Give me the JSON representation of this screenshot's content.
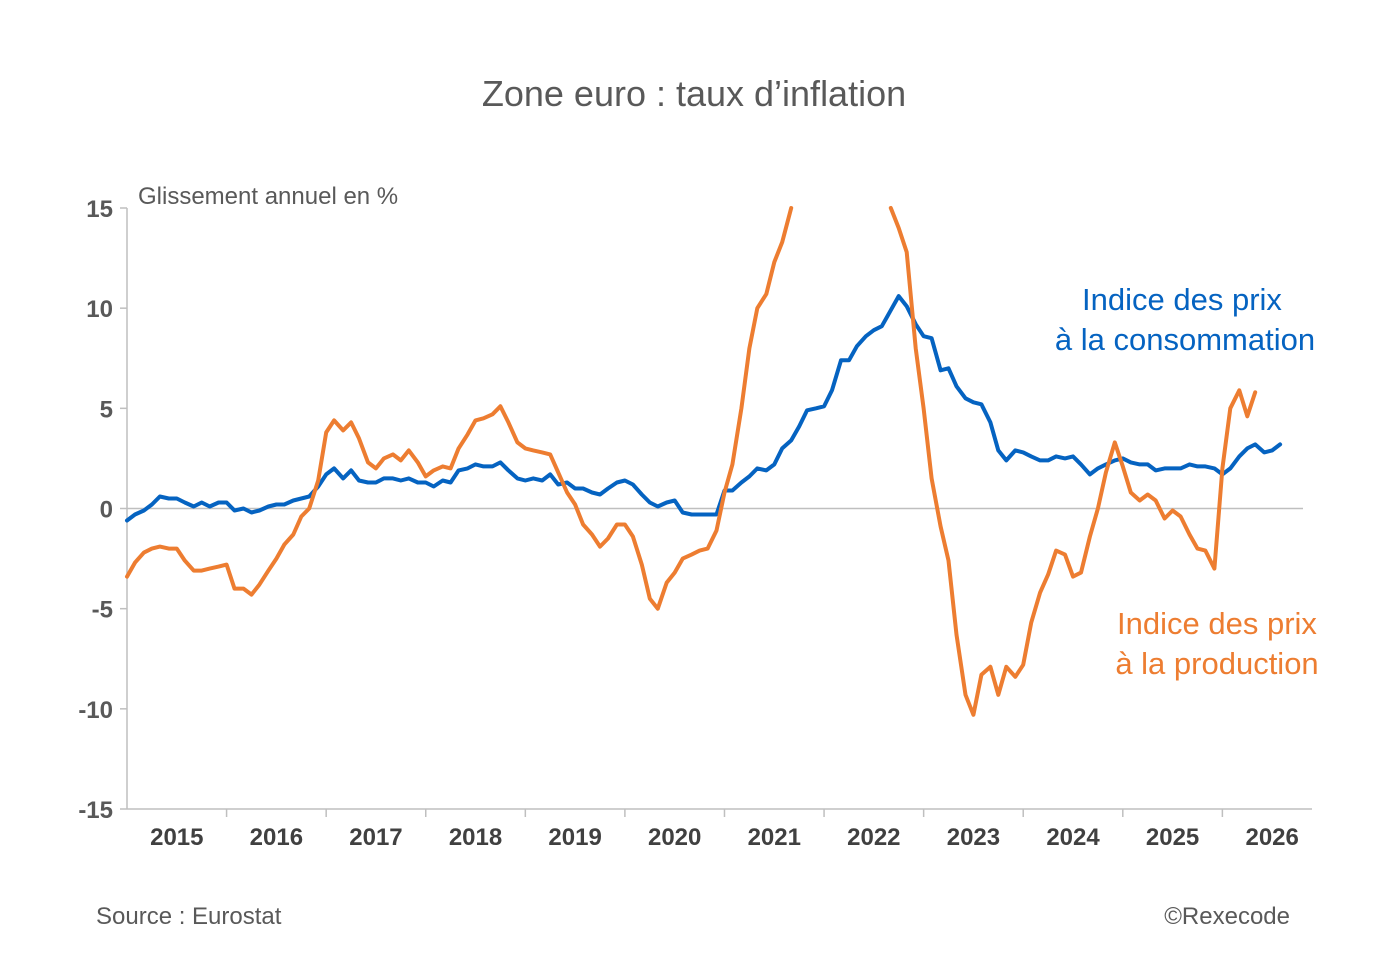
{
  "chart_data": {
    "type": "line",
    "title": "Zone euro : taux d’inflation",
    "ylabel": "Glissement annuel en %",
    "ylim": [
      -15,
      15
    ],
    "yticks": [
      15,
      10,
      5,
      0,
      -5,
      -10,
      -15
    ],
    "ytick_labels": [
      "15",
      "10",
      "5",
      "0",
      "-5",
      "-10",
      "-15"
    ],
    "xlim": [
      2015.0,
      2026.9
    ],
    "xticks": [
      2015,
      2016,
      2017,
      2018,
      2019,
      2020,
      2021,
      2022,
      2023,
      2024,
      2025,
      2026
    ],
    "xtick_labels": [
      "2015",
      "2016",
      "2017",
      "2018",
      "2019",
      "2020",
      "2021",
      "2022",
      "2023",
      "2024",
      "2025",
      "2026"
    ],
    "grid": false,
    "series": [
      {
        "name": "Indice des prix à la consommation",
        "label_line1": "Indice des prix",
        "label_line2": "à la consommation",
        "color": "#0563c1",
        "points": [
          [
            2015.0,
            -0.6
          ],
          [
            2015.08,
            -0.3
          ],
          [
            2015.17,
            -0.1
          ],
          [
            2015.25,
            0.2
          ],
          [
            2015.33,
            0.6
          ],
          [
            2015.42,
            0.5
          ],
          [
            2015.5,
            0.5
          ],
          [
            2015.58,
            0.3
          ],
          [
            2015.67,
            0.1
          ],
          [
            2015.75,
            0.3
          ],
          [
            2015.83,
            0.1
          ],
          [
            2015.92,
            0.3
          ],
          [
            2016.0,
            0.3
          ],
          [
            2016.08,
            -0.1
          ],
          [
            2016.17,
            0.0
          ],
          [
            2016.25,
            -0.2
          ],
          [
            2016.33,
            -0.1
          ],
          [
            2016.42,
            0.1
          ],
          [
            2016.5,
            0.2
          ],
          [
            2016.58,
            0.2
          ],
          [
            2016.67,
            0.4
          ],
          [
            2016.75,
            0.5
          ],
          [
            2016.83,
            0.6
          ],
          [
            2016.92,
            1.1
          ],
          [
            2017.0,
            1.7
          ],
          [
            2017.08,
            2.0
          ],
          [
            2017.17,
            1.5
          ],
          [
            2017.25,
            1.9
          ],
          [
            2017.33,
            1.4
          ],
          [
            2017.42,
            1.3
          ],
          [
            2017.5,
            1.3
          ],
          [
            2017.58,
            1.5
          ],
          [
            2017.67,
            1.5
          ],
          [
            2017.75,
            1.4
          ],
          [
            2017.83,
            1.5
          ],
          [
            2017.92,
            1.3
          ],
          [
            2018.0,
            1.3
          ],
          [
            2018.08,
            1.1
          ],
          [
            2018.17,
            1.4
          ],
          [
            2018.25,
            1.3
          ],
          [
            2018.33,
            1.9
          ],
          [
            2018.42,
            2.0
          ],
          [
            2018.5,
            2.2
          ],
          [
            2018.58,
            2.1
          ],
          [
            2018.67,
            2.1
          ],
          [
            2018.75,
            2.3
          ],
          [
            2018.83,
            1.9
          ],
          [
            2018.92,
            1.5
          ],
          [
            2019.0,
            1.4
          ],
          [
            2019.08,
            1.5
          ],
          [
            2019.17,
            1.4
          ],
          [
            2019.25,
            1.7
          ],
          [
            2019.33,
            1.2
          ],
          [
            2019.42,
            1.3
          ],
          [
            2019.5,
            1.0
          ],
          [
            2019.58,
            1.0
          ],
          [
            2019.67,
            0.8
          ],
          [
            2019.75,
            0.7
          ],
          [
            2019.83,
            1.0
          ],
          [
            2019.92,
            1.3
          ],
          [
            2020.0,
            1.4
          ],
          [
            2020.08,
            1.2
          ],
          [
            2020.17,
            0.7
          ],
          [
            2020.25,
            0.3
          ],
          [
            2020.33,
            0.1
          ],
          [
            2020.42,
            0.3
          ],
          [
            2020.5,
            0.4
          ],
          [
            2020.58,
            -0.2
          ],
          [
            2020.67,
            -0.3
          ],
          [
            2020.75,
            -0.3
          ],
          [
            2020.83,
            -0.3
          ],
          [
            2020.92,
            -0.3
          ],
          [
            2021.0,
            0.9
          ],
          [
            2021.08,
            0.9
          ],
          [
            2021.17,
            1.3
          ],
          [
            2021.25,
            1.6
          ],
          [
            2021.33,
            2.0
          ],
          [
            2021.42,
            1.9
          ],
          [
            2021.5,
            2.2
          ],
          [
            2021.58,
            3.0
          ],
          [
            2021.67,
            3.4
          ],
          [
            2021.75,
            4.1
          ],
          [
            2021.83,
            4.9
          ],
          [
            2021.92,
            5.0
          ],
          [
            2022.0,
            5.1
          ],
          [
            2022.08,
            5.9
          ],
          [
            2022.17,
            7.4
          ],
          [
            2022.25,
            7.4
          ],
          [
            2022.33,
            8.1
          ],
          [
            2022.42,
            8.6
          ],
          [
            2022.5,
            8.9
          ],
          [
            2022.58,
            9.1
          ],
          [
            2022.67,
            9.9
          ],
          [
            2022.75,
            10.6
          ],
          [
            2022.83,
            10.1
          ],
          [
            2022.92,
            9.2
          ],
          [
            2023.0,
            8.6
          ],
          [
            2023.08,
            8.5
          ],
          [
            2023.17,
            6.9
          ],
          [
            2023.25,
            7.0
          ],
          [
            2023.33,
            6.1
          ],
          [
            2023.42,
            5.5
          ],
          [
            2023.5,
            5.3
          ],
          [
            2023.58,
            5.2
          ],
          [
            2023.67,
            4.3
          ],
          [
            2023.75,
            2.9
          ],
          [
            2023.83,
            2.4
          ],
          [
            2023.92,
            2.9
          ],
          [
            2024.0,
            2.8
          ],
          [
            2024.08,
            2.6
          ],
          [
            2024.17,
            2.4
          ],
          [
            2024.25,
            2.4
          ],
          [
            2024.33,
            2.6
          ],
          [
            2024.42,
            2.5
          ],
          [
            2024.5,
            2.6
          ],
          [
            2024.58,
            2.2
          ],
          [
            2024.67,
            1.7
          ],
          [
            2024.75,
            2.0
          ],
          [
            2024.83,
            2.2
          ],
          [
            2024.92,
            2.4
          ],
          [
            2025.0,
            2.5
          ],
          [
            2025.08,
            2.3
          ],
          [
            2025.17,
            2.2
          ],
          [
            2025.25,
            2.2
          ],
          [
            2025.33,
            1.9
          ],
          [
            2025.42,
            2.0
          ],
          [
            2025.5,
            2.0
          ],
          [
            2025.58,
            2.0
          ],
          [
            2025.67,
            2.2
          ],
          [
            2025.75,
            2.1
          ],
          [
            2025.83,
            2.1
          ],
          [
            2025.92,
            2.0
          ],
          [
            2026.0,
            1.7
          ],
          [
            2026.08,
            2.0
          ],
          [
            2026.17,
            2.6
          ],
          [
            2026.25,
            3.0
          ],
          [
            2026.33,
            3.2
          ],
          [
            2026.42,
            2.8
          ],
          [
            2026.5,
            2.9
          ],
          [
            2026.58,
            3.2
          ]
        ]
      },
      {
        "name": "Indice des prix à la production",
        "label_line1": "Indice des prix",
        "label_line2": "à la production",
        "color": "#ed7d31",
        "points": [
          [
            2015.0,
            -3.4
          ],
          [
            2015.08,
            -2.7
          ],
          [
            2015.17,
            -2.2
          ],
          [
            2015.25,
            -2.0
          ],
          [
            2015.33,
            -1.9
          ],
          [
            2015.42,
            -2.0
          ],
          [
            2015.5,
            -2.0
          ],
          [
            2015.58,
            -2.6
          ],
          [
            2015.67,
            -3.1
          ],
          [
            2015.75,
            -3.1
          ],
          [
            2015.83,
            -3.0
          ],
          [
            2015.92,
            -2.9
          ],
          [
            2016.0,
            -2.8
          ],
          [
            2016.08,
            -4.0
          ],
          [
            2016.17,
            -4.0
          ],
          [
            2016.25,
            -4.3
          ],
          [
            2016.33,
            -3.8
          ],
          [
            2016.42,
            -3.1
          ],
          [
            2016.5,
            -2.5
          ],
          [
            2016.58,
            -1.8
          ],
          [
            2016.67,
            -1.3
          ],
          [
            2016.75,
            -0.4
          ],
          [
            2016.83,
            0.0
          ],
          [
            2016.92,
            1.4
          ],
          [
            2017.0,
            3.8
          ],
          [
            2017.08,
            4.4
          ],
          [
            2017.17,
            3.9
          ],
          [
            2017.25,
            4.3
          ],
          [
            2017.33,
            3.5
          ],
          [
            2017.42,
            2.3
          ],
          [
            2017.5,
            2.0
          ],
          [
            2017.58,
            2.5
          ],
          [
            2017.67,
            2.7
          ],
          [
            2017.75,
            2.4
          ],
          [
            2017.83,
            2.9
          ],
          [
            2017.92,
            2.3
          ],
          [
            2018.0,
            1.6
          ],
          [
            2018.08,
            1.9
          ],
          [
            2018.17,
            2.1
          ],
          [
            2018.25,
            2.0
          ],
          [
            2018.33,
            3.0
          ],
          [
            2018.42,
            3.7
          ],
          [
            2018.5,
            4.4
          ],
          [
            2018.58,
            4.5
          ],
          [
            2018.67,
            4.7
          ],
          [
            2018.75,
            5.1
          ],
          [
            2018.83,
            4.3
          ],
          [
            2018.92,
            3.3
          ],
          [
            2019.0,
            3.0
          ],
          [
            2019.08,
            2.9
          ],
          [
            2019.17,
            2.8
          ],
          [
            2019.25,
            2.7
          ],
          [
            2019.33,
            1.8
          ],
          [
            2019.42,
            0.8
          ],
          [
            2019.5,
            0.2
          ],
          [
            2019.58,
            -0.8
          ],
          [
            2019.67,
            -1.3
          ],
          [
            2019.75,
            -1.9
          ],
          [
            2019.83,
            -1.5
          ],
          [
            2019.92,
            -0.8
          ],
          [
            2020.0,
            -0.8
          ],
          [
            2020.08,
            -1.4
          ],
          [
            2020.17,
            -2.8
          ],
          [
            2020.25,
            -4.5
          ],
          [
            2020.33,
            -5.0
          ],
          [
            2020.42,
            -3.7
          ],
          [
            2020.5,
            -3.2
          ],
          [
            2020.58,
            -2.5
          ],
          [
            2020.67,
            -2.3
          ],
          [
            2020.75,
            -2.1
          ],
          [
            2020.83,
            -2.0
          ],
          [
            2020.92,
            -1.1
          ],
          [
            2021.0,
            0.8
          ],
          [
            2021.08,
            2.2
          ],
          [
            2021.17,
            5.0
          ],
          [
            2021.25,
            8.0
          ],
          [
            2021.33,
            10.0
          ],
          [
            2021.42,
            10.7
          ],
          [
            2021.5,
            12.3
          ],
          [
            2021.58,
            13.3
          ],
          [
            2021.67,
            15.0
          ]
        ],
        "points_after_gap": [
          [
            2022.67,
            15.0
          ],
          [
            2022.75,
            14.0
          ],
          [
            2022.83,
            12.8
          ],
          [
            2022.92,
            8.0
          ],
          [
            2023.0,
            5.0
          ],
          [
            2023.08,
            1.5
          ],
          [
            2023.17,
            -0.9
          ],
          [
            2023.25,
            -2.6
          ],
          [
            2023.33,
            -6.3
          ],
          [
            2023.42,
            -9.3
          ],
          [
            2023.5,
            -10.3
          ],
          [
            2023.58,
            -8.3
          ],
          [
            2023.67,
            -7.9
          ],
          [
            2023.75,
            -9.3
          ],
          [
            2023.83,
            -7.9
          ],
          [
            2023.92,
            -8.4
          ],
          [
            2024.0,
            -7.8
          ],
          [
            2024.08,
            -5.7
          ],
          [
            2024.17,
            -4.2
          ],
          [
            2024.25,
            -3.3
          ],
          [
            2024.33,
            -2.1
          ],
          [
            2024.42,
            -2.3
          ],
          [
            2024.5,
            -3.4
          ],
          [
            2024.58,
            -3.2
          ],
          [
            2024.67,
            -1.4
          ],
          [
            2024.75,
            0.0
          ],
          [
            2024.83,
            1.8
          ],
          [
            2024.92,
            3.3
          ],
          [
            2025.0,
            2.1
          ],
          [
            2025.08,
            0.8
          ],
          [
            2025.17,
            0.4
          ],
          [
            2025.25,
            0.7
          ],
          [
            2025.33,
            0.4
          ],
          [
            2025.42,
            -0.5
          ],
          [
            2025.5,
            -0.1
          ],
          [
            2025.58,
            -0.4
          ],
          [
            2025.67,
            -1.3
          ],
          [
            2025.75,
            -2.0
          ],
          [
            2025.83,
            -2.1
          ],
          [
            2025.92,
            -3.0
          ],
          [
            2026.0,
            2.0
          ],
          [
            2026.08,
            5.0
          ],
          [
            2026.17,
            5.9
          ],
          [
            2026.25,
            4.6
          ],
          [
            2026.33,
            5.8
          ]
        ]
      }
    ],
    "source": "Source : Eurostat",
    "copyright": "©Rexecode"
  }
}
